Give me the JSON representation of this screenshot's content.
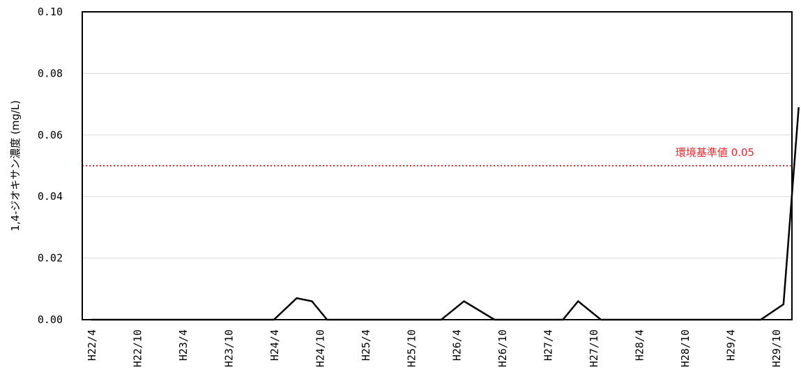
{
  "chart_data": {
    "type": "line",
    "title": "",
    "ylabel": "1,4-ジオキサン濃度 (mg/L)",
    "xlabel": "",
    "ylim": [
      0,
      0.1
    ],
    "y_ticks": [
      "0.00",
      "0.02",
      "0.04",
      "0.06",
      "0.08",
      "0.10"
    ],
    "grid": "horizontal",
    "x_axis": {
      "start": "H22/4",
      "end": "H29/10",
      "tick_labels": [
        "H22/4",
        "H22/10",
        "H23/4",
        "H23/10",
        "H24/4",
        "H24/10",
        "H25/4",
        "H25/10",
        "H26/4",
        "H26/10",
        "H27/4",
        "H27/10",
        "H28/4",
        "H28/10",
        "H29/4",
        "H29/10"
      ]
    },
    "series": [
      {
        "color": "#000000",
        "points": [
          {
            "x": "H22/4",
            "y": 0
          },
          {
            "x": "H24/4",
            "y": 0
          },
          {
            "x": "H24/7",
            "y": 0.007
          },
          {
            "x": "H24/9",
            "y": 0.006
          },
          {
            "x": "H24/11",
            "y": 0
          },
          {
            "x": "H26/2",
            "y": 0
          },
          {
            "x": "H26/5",
            "y": 0.006
          },
          {
            "x": "H26/9",
            "y": 0
          },
          {
            "x": "H27/6",
            "y": 0
          },
          {
            "x": "H27/8",
            "y": 0.006
          },
          {
            "x": "H27/11",
            "y": 0
          },
          {
            "x": "H29/8",
            "y": 0
          },
          {
            "x": "H29/11",
            "y": 0.005
          },
          {
            "x": "H30/1",
            "y": 0.069
          }
        ]
      }
    ],
    "reference_line": {
      "label": "環境基準値 0.05",
      "value": 0.05,
      "color": "#e8282b",
      "style": "dotted"
    }
  }
}
